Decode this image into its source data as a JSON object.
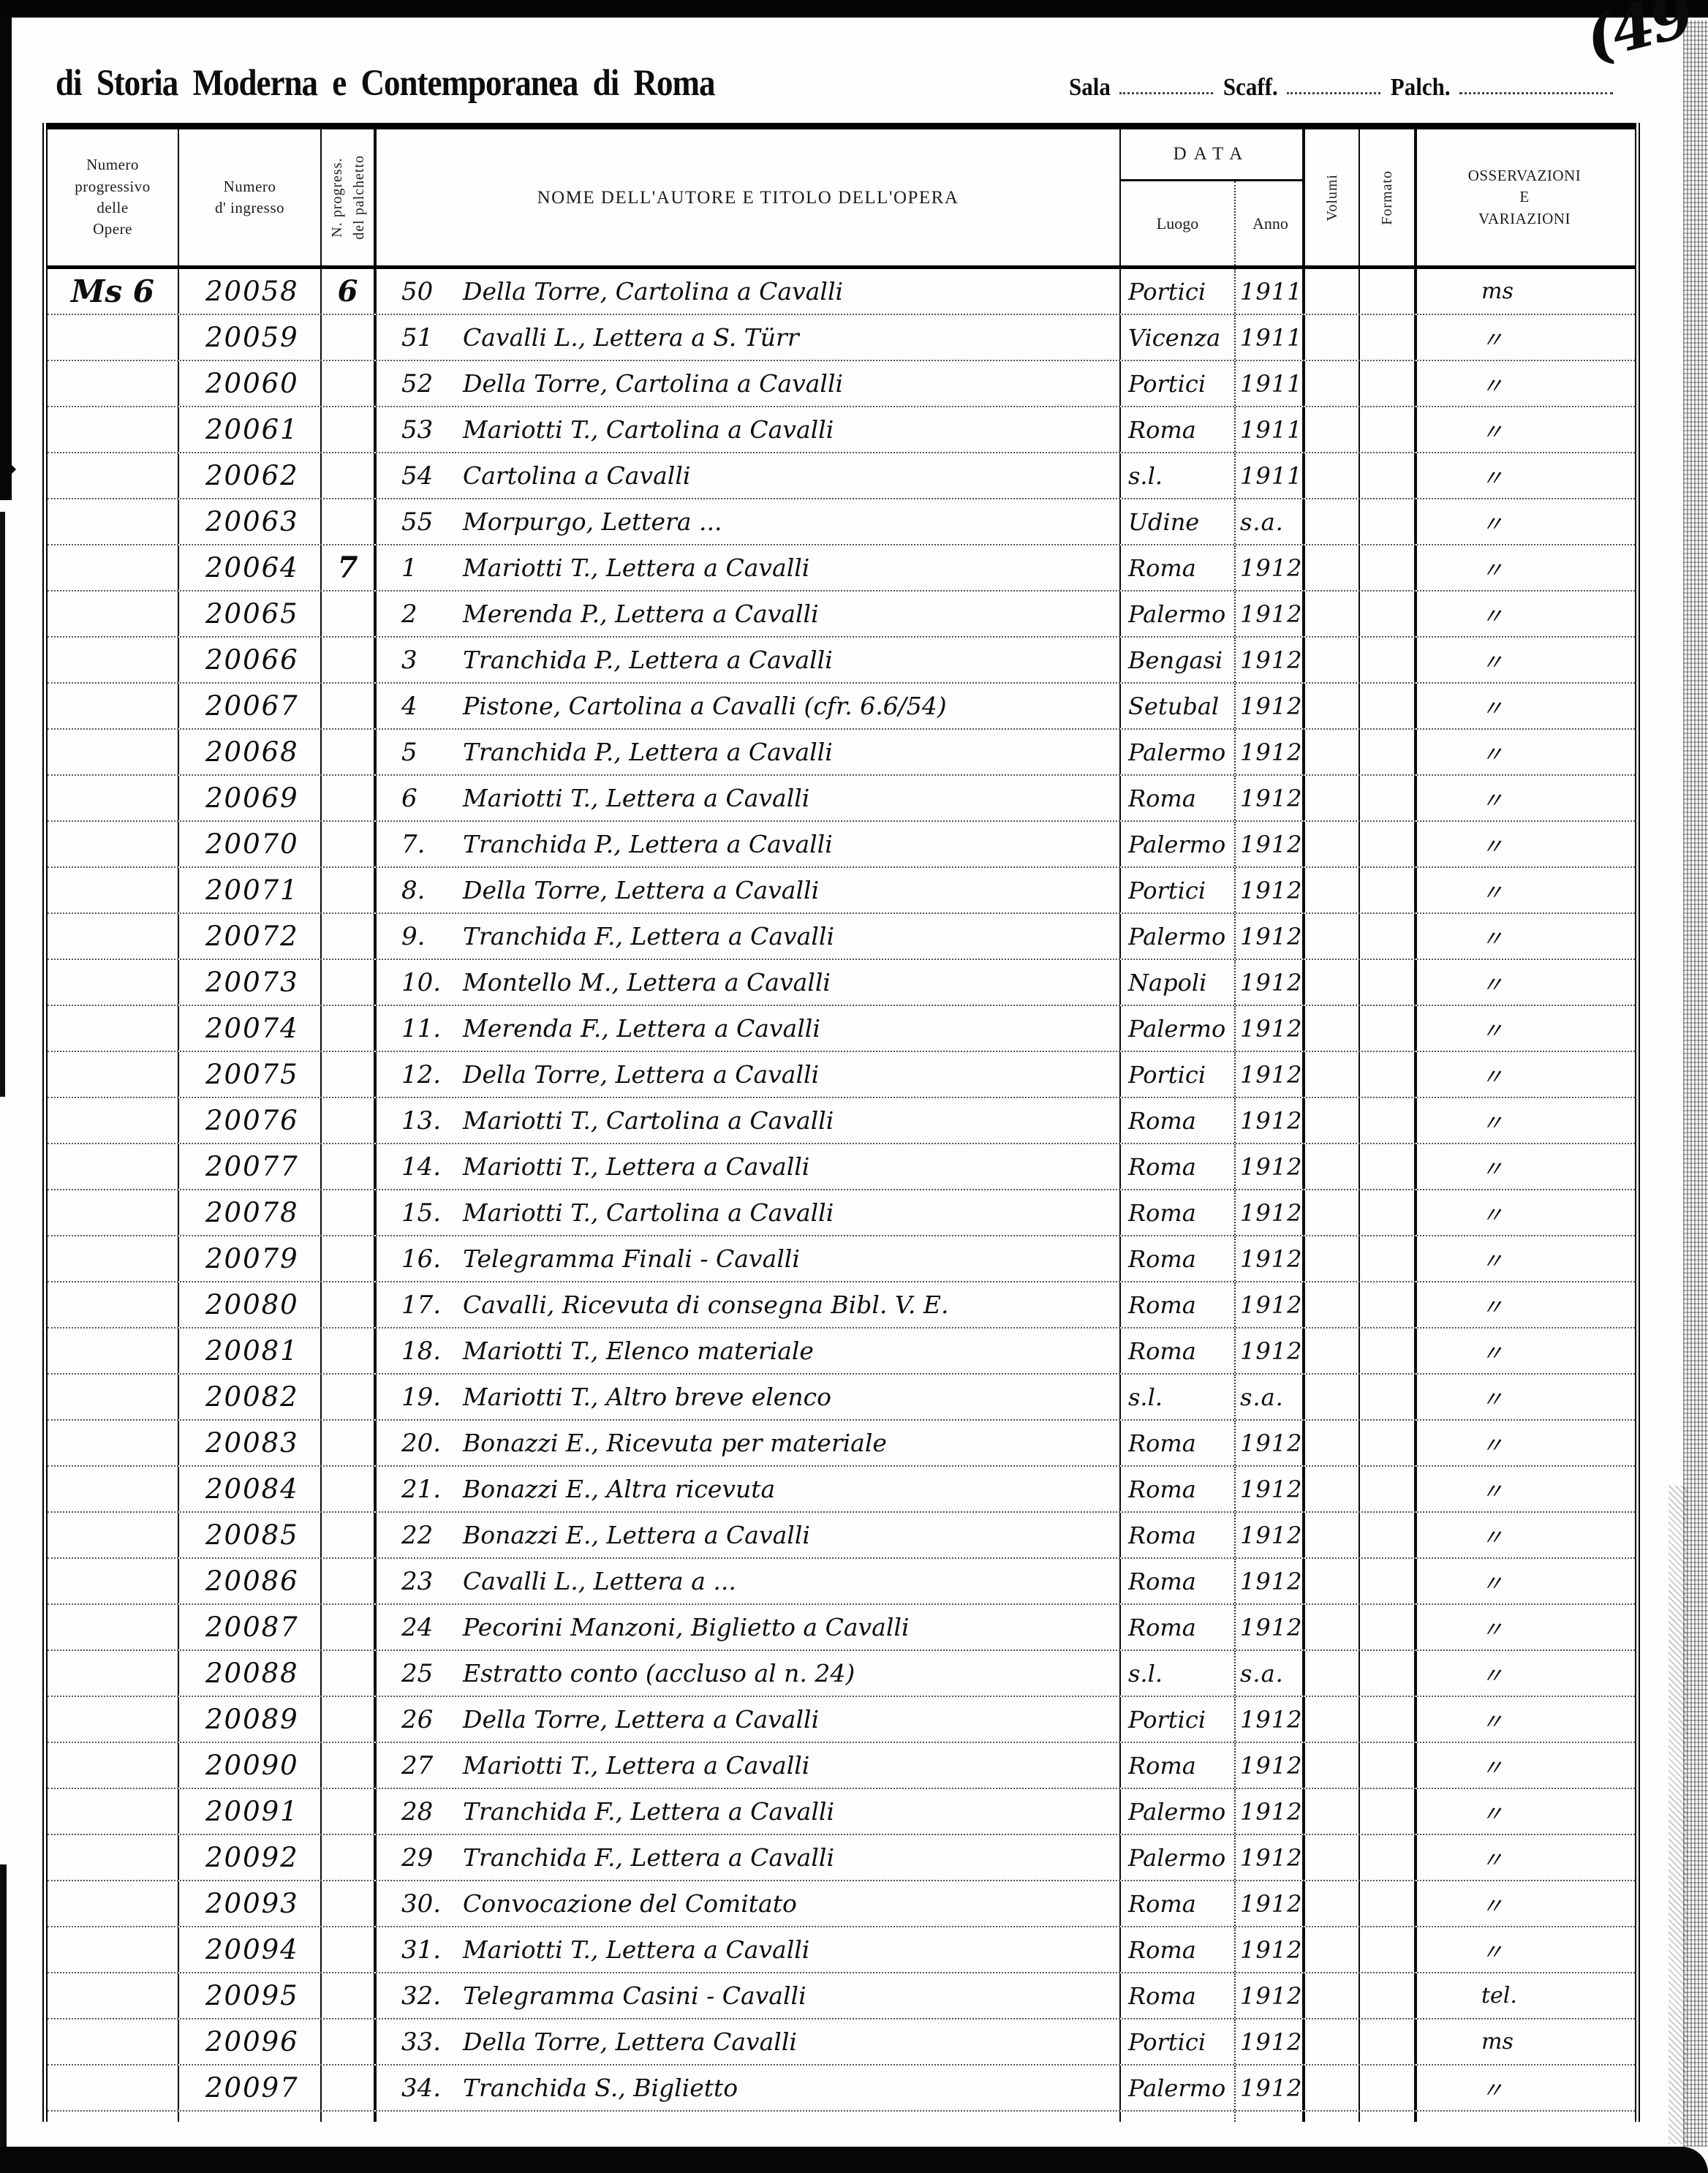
{
  "page": {
    "corner_number": "(49",
    "heading": "di Storia Moderna e Contemporanea di Roma",
    "fields": {
      "sala_label": "Sala",
      "scaff_label": "Scaff.",
      "palch_label": "Palch."
    }
  },
  "table": {
    "headers": {
      "col_opere": "Numero\nprogressivo\ndelle\nOpere",
      "col_ingresso": "Numero\nd' ingresso",
      "col_palchetto": "N. progress.\ndel palchetto",
      "col_titolo": "NOME DELL'AUTORE E TITOLO DELL'OPERA",
      "col_data": "DATA",
      "col_luogo": "Luogo",
      "col_anno": "Anno",
      "col_volumi": "Volumi",
      "col_formato": "Formato",
      "col_osservazioni": "OSSERVAZIONI\nE\nVARIAZIONI"
    },
    "rows": [
      {
        "opere": "Ms 6",
        "ingresso": "20058",
        "palchetto": "6",
        "num": "50",
        "titolo": "Della Torre, Cartolina a Cavalli",
        "luogo": "Portici",
        "anno": "1911",
        "osservazioni": "ms"
      },
      {
        "opere": "",
        "ingresso": "20059",
        "palchetto": "",
        "num": "51",
        "titolo": "Cavalli L., Lettera a S. Türr",
        "luogo": "Vicenza",
        "anno": "1911",
        "osservazioni": "〃"
      },
      {
        "opere": "",
        "ingresso": "20060",
        "palchetto": "",
        "num": "52",
        "titolo": "Della Torre, Cartolina a Cavalli",
        "luogo": "Portici",
        "anno": "1911",
        "osservazioni": "〃"
      },
      {
        "opere": "",
        "ingresso": "20061",
        "palchetto": "",
        "num": "53",
        "titolo": "Mariotti T., Cartolina a Cavalli",
        "luogo": "Roma",
        "anno": "1911",
        "osservazioni": "〃"
      },
      {
        "opere": "",
        "ingresso": "20062",
        "palchetto": "",
        "num": "54",
        "titolo": "Cartolina a Cavalli",
        "luogo": "s.l.",
        "anno": "1911",
        "osservazioni": "〃"
      },
      {
        "opere": "",
        "ingresso": "20063",
        "palchetto": "",
        "num": "55",
        "titolo": "Morpurgo, Lettera ...",
        "luogo": "Udine",
        "anno": "s.a.",
        "osservazioni": "〃"
      },
      {
        "opere": "",
        "ingresso": "20064",
        "palchetto": "7",
        "num": "1",
        "titolo": "Mariotti T., Lettera a Cavalli",
        "luogo": "Roma",
        "anno": "1912",
        "osservazioni": "〃"
      },
      {
        "opere": "",
        "ingresso": "20065",
        "palchetto": "",
        "num": "2",
        "titolo": "Merenda P., Lettera a Cavalli",
        "luogo": "Palermo",
        "anno": "1912",
        "osservazioni": "〃"
      },
      {
        "opere": "",
        "ingresso": "20066",
        "palchetto": "",
        "num": "3",
        "titolo": "Tranchida P., Lettera a Cavalli",
        "luogo": "Bengasi",
        "anno": "1912",
        "osservazioni": "〃"
      },
      {
        "opere": "",
        "ingresso": "20067",
        "palchetto": "",
        "num": "4",
        "titolo": "Pistone, Cartolina a Cavalli (cfr. 6.6/54)",
        "luogo": "Setubal",
        "anno": "1912",
        "osservazioni": "〃"
      },
      {
        "opere": "",
        "ingresso": "20068",
        "palchetto": "",
        "num": "5",
        "titolo": "Tranchida P., Lettera a Cavalli",
        "luogo": "Palermo",
        "anno": "1912",
        "osservazioni": "〃"
      },
      {
        "opere": "",
        "ingresso": "20069",
        "palchetto": "",
        "num": "6",
        "titolo": "Mariotti T., Lettera a Cavalli",
        "luogo": "Roma",
        "anno": "1912",
        "osservazioni": "〃"
      },
      {
        "opere": "",
        "ingresso": "20070",
        "palchetto": "",
        "num": "7.",
        "titolo": "Tranchida P., Lettera a Cavalli",
        "luogo": "Palermo",
        "anno": "1912",
        "osservazioni": "〃"
      },
      {
        "opere": "",
        "ingresso": "20071",
        "palchetto": "",
        "num": "8.",
        "titolo": "Della Torre, Lettera a Cavalli",
        "luogo": "Portici",
        "anno": "1912",
        "osservazioni": "〃"
      },
      {
        "opere": "",
        "ingresso": "20072",
        "palchetto": "",
        "num": "9.",
        "titolo": "Tranchida F., Lettera a Cavalli",
        "luogo": "Palermo",
        "anno": "1912",
        "osservazioni": "〃"
      },
      {
        "opere": "",
        "ingresso": "20073",
        "palchetto": "",
        "num": "10.",
        "titolo": "Montello M., Lettera a Cavalli",
        "luogo": "Napoli",
        "anno": "1912",
        "osservazioni": "〃"
      },
      {
        "opere": "",
        "ingresso": "20074",
        "palchetto": "",
        "num": "11.",
        "titolo": "Merenda F., Lettera a Cavalli",
        "luogo": "Palermo",
        "anno": "1912",
        "osservazioni": "〃"
      },
      {
        "opere": "",
        "ingresso": "20075",
        "palchetto": "",
        "num": "12.",
        "titolo": "Della Torre, Lettera a Cavalli",
        "luogo": "Portici",
        "anno": "1912",
        "osservazioni": "〃"
      },
      {
        "opere": "",
        "ingresso": "20076",
        "palchetto": "",
        "num": "13.",
        "titolo": "Mariotti T., Cartolina a Cavalli",
        "luogo": "Roma",
        "anno": "1912",
        "osservazioni": "〃"
      },
      {
        "opere": "",
        "ingresso": "20077",
        "palchetto": "",
        "num": "14.",
        "titolo": "Mariotti T., Lettera a Cavalli",
        "luogo": "Roma",
        "anno": "1912",
        "osservazioni": "〃"
      },
      {
        "opere": "",
        "ingresso": "20078",
        "palchetto": "",
        "num": "15.",
        "titolo": "Mariotti T., Cartolina a Cavalli",
        "luogo": "Roma",
        "anno": "1912",
        "osservazioni": "〃"
      },
      {
        "opere": "",
        "ingresso": "20079",
        "palchetto": "",
        "num": "16.",
        "titolo": "Telegramma Finali - Cavalli",
        "luogo": "Roma",
        "anno": "1912",
        "osservazioni": "〃"
      },
      {
        "opere": "",
        "ingresso": "20080",
        "palchetto": "",
        "num": "17.",
        "titolo": "Cavalli, Ricevuta di consegna Bibl. V. E.",
        "luogo": "Roma",
        "anno": "1912",
        "osservazioni": "〃"
      },
      {
        "opere": "",
        "ingresso": "20081",
        "palchetto": "",
        "num": "18.",
        "titolo": "Mariotti T., Elenco materiale",
        "luogo": "Roma",
        "anno": "1912",
        "osservazioni": "〃"
      },
      {
        "opere": "",
        "ingresso": "20082",
        "palchetto": "",
        "num": "19.",
        "titolo": "Mariotti T., Altro breve elenco",
        "luogo": "s.l.",
        "anno": "s.a.",
        "osservazioni": "〃"
      },
      {
        "opere": "",
        "ingresso": "20083",
        "palchetto": "",
        "num": "20.",
        "titolo": "Bonazzi E., Ricevuta per materiale",
        "luogo": "Roma",
        "anno": "1912",
        "osservazioni": "〃"
      },
      {
        "opere": "",
        "ingresso": "20084",
        "palchetto": "",
        "num": "21.",
        "titolo": "Bonazzi E., Altra ricevuta",
        "luogo": "Roma",
        "anno": "1912",
        "osservazioni": "〃"
      },
      {
        "opere": "",
        "ingresso": "20085",
        "palchetto": "",
        "num": "22",
        "titolo": "Bonazzi E., Lettera a Cavalli",
        "luogo": "Roma",
        "anno": "1912",
        "osservazioni": "〃"
      },
      {
        "opere": "",
        "ingresso": "20086",
        "palchetto": "",
        "num": "23",
        "titolo": "Cavalli L., Lettera a ...",
        "luogo": "Roma",
        "anno": "1912",
        "osservazioni": "〃"
      },
      {
        "opere": "",
        "ingresso": "20087",
        "palchetto": "",
        "num": "24",
        "titolo": "Pecorini Manzoni, Biglietto a Cavalli",
        "luogo": "Roma",
        "anno": "1912",
        "osservazioni": "〃"
      },
      {
        "opere": "",
        "ingresso": "20088",
        "palchetto": "",
        "num": "25",
        "titolo": "Estratto conto (accluso al n. 24)",
        "luogo": "s.l.",
        "anno": "s.a.",
        "osservazioni": "〃"
      },
      {
        "opere": "",
        "ingresso": "20089",
        "palchetto": "",
        "num": "26",
        "titolo": "Della Torre, Lettera a Cavalli",
        "luogo": "Portici",
        "anno": "1912",
        "osservazioni": "〃"
      },
      {
        "opere": "",
        "ingresso": "20090",
        "palchetto": "",
        "num": "27",
        "titolo": "Mariotti T., Lettera a Cavalli",
        "luogo": "Roma",
        "anno": "1912",
        "osservazioni": "〃"
      },
      {
        "opere": "",
        "ingresso": "20091",
        "palchetto": "",
        "num": "28",
        "titolo": "Tranchida F., Lettera a Cavalli",
        "luogo": "Palermo",
        "anno": "1912",
        "osservazioni": "〃"
      },
      {
        "opere": "",
        "ingresso": "20092",
        "palchetto": "",
        "num": "29",
        "titolo": "Tranchida F., Lettera a Cavalli",
        "luogo": "Palermo",
        "anno": "1912",
        "osservazioni": "〃"
      },
      {
        "opere": "",
        "ingresso": "20093",
        "palchetto": "",
        "num": "30.",
        "titolo": "Convocazione del Comitato",
        "luogo": "Roma",
        "anno": "1912",
        "osservazioni": "〃"
      },
      {
        "opere": "",
        "ingresso": "20094",
        "palchetto": "",
        "num": "31.",
        "titolo": "Mariotti T., Lettera a Cavalli",
        "luogo": "Roma",
        "anno": "1912",
        "osservazioni": "〃"
      },
      {
        "opere": "",
        "ingresso": "20095",
        "palchetto": "",
        "num": "32.",
        "titolo": "Telegramma Casini - Cavalli",
        "luogo": "Roma",
        "anno": "1912",
        "osservazioni": "tel."
      },
      {
        "opere": "",
        "ingresso": "20096",
        "palchetto": "",
        "num": "33.",
        "titolo": "Della Torre, Lettera Cavalli",
        "luogo": "Portici",
        "anno": "1912",
        "osservazioni": "ms"
      },
      {
        "opere": "",
        "ingresso": "20097",
        "palchetto": "",
        "num": "34.",
        "titolo": "Tranchida S., Biglietto",
        "luogo": "Palermo",
        "anno": "1912",
        "osservazioni": "〃"
      }
    ]
  }
}
